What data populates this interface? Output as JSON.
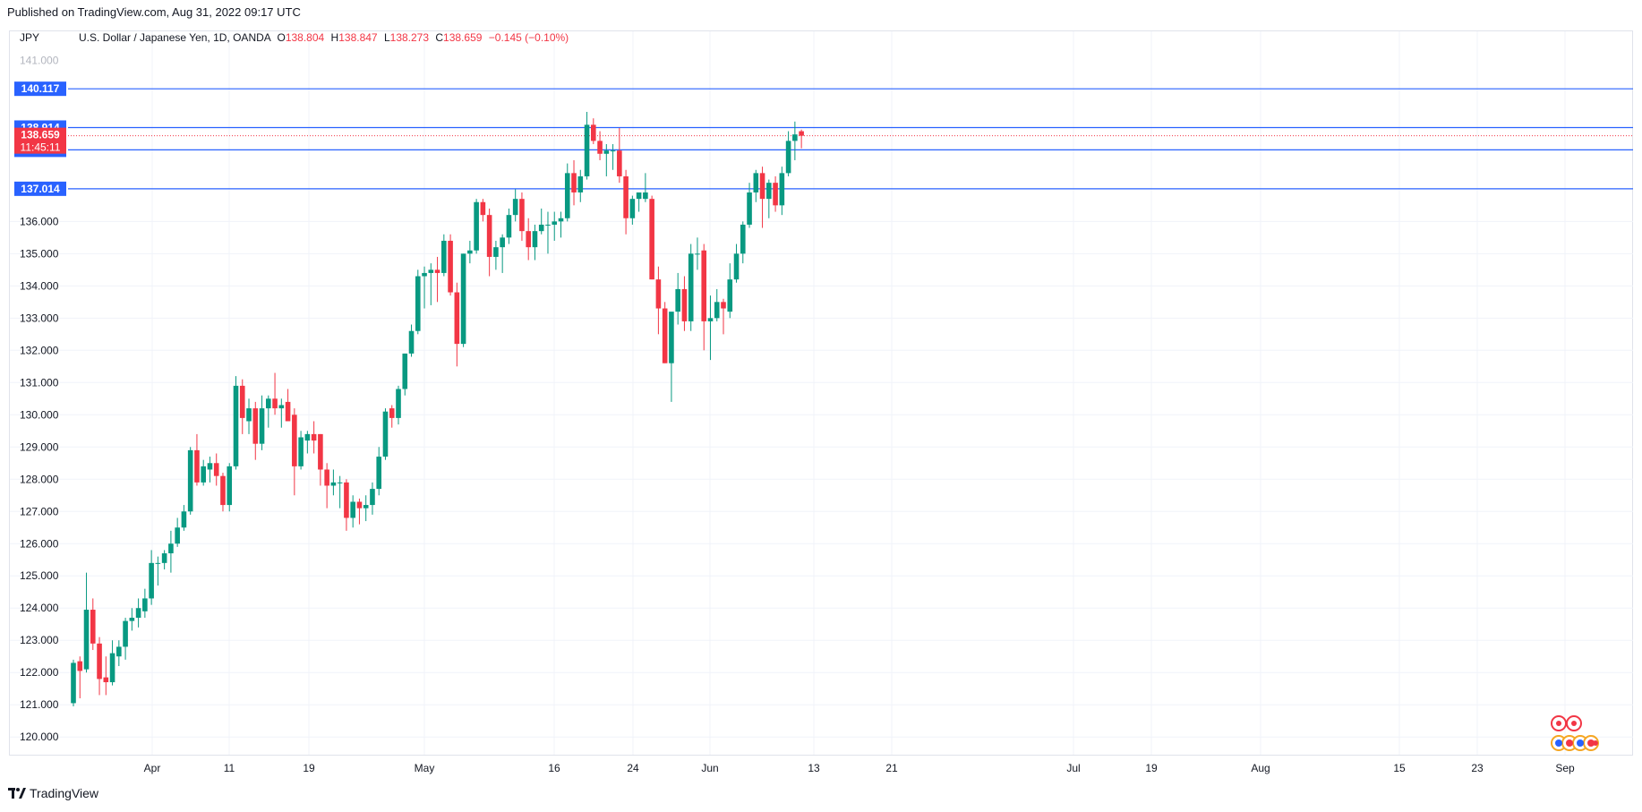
{
  "published": "Published on TradingView.com, Aug 31, 2022 09:17 UTC",
  "brand": "TradingView",
  "header": {
    "symbol": "JPY",
    "description": "U.S. Dollar / Japanese Yen, 1D, OANDA",
    "o_label": "O",
    "o_value": "138.804",
    "h_label": "H",
    "h_value": "138.847",
    "l_label": "L",
    "l_value": "138.273",
    "c_label": "C",
    "c_value": "138.659",
    "change": "−0.145 (−0.10%)"
  },
  "colors": {
    "up": "#089981",
    "down": "#f23645",
    "hline": "#2962ff",
    "grid": "#f0f3fa",
    "axis_text": "#131722"
  },
  "chart_data": {
    "type": "candlestick",
    "symbol": "USD/JPY",
    "timeframe": "1D",
    "ylim": [
      119.45,
      141.9
    ],
    "y_ticks": [
      "120.000",
      "121.000",
      "122.000",
      "123.000",
      "124.000",
      "125.000",
      "126.000",
      "127.000",
      "128.000",
      "129.000",
      "130.000",
      "131.000",
      "132.000",
      "133.000",
      "134.000",
      "135.000",
      "136.000"
    ],
    "top_clipped_tick": "141.000",
    "x_labels": [
      "Apr",
      "11",
      "19",
      "May",
      "16",
      "24",
      "Jun",
      "13",
      "21",
      "Jul",
      "19",
      "Aug",
      "15",
      "23",
      "Sep"
    ],
    "hlines": [
      {
        "value": 140.117,
        "label": "140.117"
      },
      {
        "value": 138.914,
        "label": "138.914"
      },
      {
        "value": 138.222,
        "label": "138.222"
      },
      {
        "value": 137.014,
        "label": "137.014"
      }
    ],
    "last_price": {
      "value": 138.659,
      "label": "138.659",
      "countdown": "11:45:11"
    },
    "candles": [
      {
        "o": 121.05,
        "h": 122.4,
        "l": 120.95,
        "c": 122.3
      },
      {
        "o": 122.35,
        "h": 122.5,
        "l": 121.2,
        "c": 122.05
      },
      {
        "o": 122.1,
        "h": 125.1,
        "l": 122.0,
        "c": 123.95
      },
      {
        "o": 123.95,
        "h": 124.3,
        "l": 122.7,
        "c": 122.9
      },
      {
        "o": 122.9,
        "h": 123.1,
        "l": 121.3,
        "c": 121.8
      },
      {
        "o": 121.85,
        "h": 122.5,
        "l": 121.3,
        "c": 121.7
      },
      {
        "o": 121.7,
        "h": 123.0,
        "l": 121.6,
        "c": 122.6
      },
      {
        "o": 122.5,
        "h": 123.0,
        "l": 122.2,
        "c": 122.8
      },
      {
        "o": 122.8,
        "h": 123.7,
        "l": 122.4,
        "c": 123.6
      },
      {
        "o": 123.6,
        "h": 124.0,
        "l": 123.3,
        "c": 123.7
      },
      {
        "o": 123.7,
        "h": 124.3,
        "l": 123.4,
        "c": 124.0
      },
      {
        "o": 123.9,
        "h": 124.6,
        "l": 123.7,
        "c": 124.3
      },
      {
        "o": 124.3,
        "h": 125.8,
        "l": 124.1,
        "c": 125.4
      },
      {
        "o": 125.4,
        "h": 125.6,
        "l": 124.7,
        "c": 125.4
      },
      {
        "o": 125.4,
        "h": 125.8,
        "l": 125.2,
        "c": 125.7
      },
      {
        "o": 125.7,
        "h": 126.4,
        "l": 125.1,
        "c": 126.0
      },
      {
        "o": 126.0,
        "h": 126.8,
        "l": 125.9,
        "c": 126.5
      },
      {
        "o": 126.5,
        "h": 127.2,
        "l": 126.4,
        "c": 127.0
      },
      {
        "o": 127.0,
        "h": 129.0,
        "l": 126.9,
        "c": 128.9
      },
      {
        "o": 128.9,
        "h": 129.4,
        "l": 127.8,
        "c": 127.9
      },
      {
        "o": 127.9,
        "h": 128.6,
        "l": 127.8,
        "c": 128.4
      },
      {
        "o": 128.3,
        "h": 128.7,
        "l": 127.9,
        "c": 128.5
      },
      {
        "o": 128.5,
        "h": 128.8,
        "l": 127.8,
        "c": 128.1
      },
      {
        "o": 128.1,
        "h": 128.2,
        "l": 127.0,
        "c": 127.2
      },
      {
        "o": 127.2,
        "h": 128.5,
        "l": 127.0,
        "c": 128.4
      },
      {
        "o": 128.4,
        "h": 131.2,
        "l": 128.3,
        "c": 130.9
      },
      {
        "o": 130.9,
        "h": 131.1,
        "l": 129.4,
        "c": 129.9
      },
      {
        "o": 129.8,
        "h": 130.5,
        "l": 129.4,
        "c": 130.2
      },
      {
        "o": 130.2,
        "h": 130.4,
        "l": 128.6,
        "c": 129.1
      },
      {
        "o": 129.1,
        "h": 130.6,
        "l": 128.9,
        "c": 130.2
      },
      {
        "o": 130.2,
        "h": 130.6,
        "l": 129.6,
        "c": 130.5
      },
      {
        "o": 130.5,
        "h": 131.3,
        "l": 130.0,
        "c": 130.2
      },
      {
        "o": 130.2,
        "h": 130.5,
        "l": 129.6,
        "c": 130.3
      },
      {
        "o": 130.4,
        "h": 130.8,
        "l": 129.8,
        "c": 129.8
      },
      {
        "o": 130.0,
        "h": 130.2,
        "l": 127.5,
        "c": 128.4
      },
      {
        "o": 128.4,
        "h": 129.5,
        "l": 128.3,
        "c": 129.3
      },
      {
        "o": 129.2,
        "h": 129.5,
        "l": 128.8,
        "c": 129.4
      },
      {
        "o": 129.4,
        "h": 129.8,
        "l": 128.8,
        "c": 129.2
      },
      {
        "o": 129.4,
        "h": 129.4,
        "l": 127.8,
        "c": 128.3
      },
      {
        "o": 128.3,
        "h": 128.5,
        "l": 127.1,
        "c": 127.8
      },
      {
        "o": 127.8,
        "h": 128.3,
        "l": 127.5,
        "c": 127.9
      },
      {
        "o": 127.9,
        "h": 128.1,
        "l": 127.1,
        "c": 127.9
      },
      {
        "o": 127.9,
        "h": 128.0,
        "l": 126.4,
        "c": 126.8
      },
      {
        "o": 126.8,
        "h": 127.5,
        "l": 126.5,
        "c": 127.3
      },
      {
        "o": 127.3,
        "h": 127.4,
        "l": 126.6,
        "c": 127.1
      },
      {
        "o": 127.1,
        "h": 127.5,
        "l": 126.7,
        "c": 127.2
      },
      {
        "o": 127.2,
        "h": 127.9,
        "l": 126.9,
        "c": 127.7
      },
      {
        "o": 127.7,
        "h": 129.0,
        "l": 127.5,
        "c": 128.7
      },
      {
        "o": 128.7,
        "h": 130.2,
        "l": 128.6,
        "c": 130.1
      },
      {
        "o": 130.2,
        "h": 130.3,
        "l": 129.6,
        "c": 129.9
      },
      {
        "o": 129.9,
        "h": 130.9,
        "l": 129.7,
        "c": 130.8
      },
      {
        "o": 130.8,
        "h": 131.9,
        "l": 130.6,
        "c": 131.9
      },
      {
        "o": 131.9,
        "h": 132.8,
        "l": 131.8,
        "c": 132.6
      },
      {
        "o": 132.6,
        "h": 134.5,
        "l": 132.5,
        "c": 134.3
      },
      {
        "o": 134.3,
        "h": 134.6,
        "l": 133.3,
        "c": 134.4
      },
      {
        "o": 134.4,
        "h": 134.7,
        "l": 133.4,
        "c": 134.5
      },
      {
        "o": 134.5,
        "h": 134.9,
        "l": 133.5,
        "c": 134.4
      },
      {
        "o": 134.4,
        "h": 135.6,
        "l": 134.3,
        "c": 135.4
      },
      {
        "o": 135.4,
        "h": 135.6,
        "l": 133.7,
        "c": 133.8
      },
      {
        "o": 133.8,
        "h": 134.1,
        "l": 131.5,
        "c": 132.2
      },
      {
        "o": 132.2,
        "h": 135.0,
        "l": 132.1,
        "c": 135.0
      },
      {
        "o": 135.0,
        "h": 135.4,
        "l": 134.7,
        "c": 135.1
      },
      {
        "o": 135.1,
        "h": 136.7,
        "l": 135.0,
        "c": 136.6
      },
      {
        "o": 136.6,
        "h": 136.7,
        "l": 136.0,
        "c": 136.2
      },
      {
        "o": 136.2,
        "h": 136.4,
        "l": 134.3,
        "c": 134.9
      },
      {
        "o": 134.9,
        "h": 135.4,
        "l": 134.5,
        "c": 135.2
      },
      {
        "o": 135.2,
        "h": 135.6,
        "l": 134.4,
        "c": 135.5
      },
      {
        "o": 135.5,
        "h": 136.4,
        "l": 135.3,
        "c": 136.2
      },
      {
        "o": 136.2,
        "h": 137.0,
        "l": 136.0,
        "c": 136.7
      },
      {
        "o": 136.7,
        "h": 136.9,
        "l": 135.4,
        "c": 135.7
      },
      {
        "o": 135.7,
        "h": 136.1,
        "l": 134.8,
        "c": 135.2
      },
      {
        "o": 135.2,
        "h": 135.9,
        "l": 134.8,
        "c": 135.7
      },
      {
        "o": 135.7,
        "h": 136.4,
        "l": 135.6,
        "c": 135.9
      },
      {
        "o": 135.9,
        "h": 136.3,
        "l": 135.0,
        "c": 135.9
      },
      {
        "o": 135.9,
        "h": 136.3,
        "l": 135.4,
        "c": 136.0
      },
      {
        "o": 136.0,
        "h": 136.3,
        "l": 135.5,
        "c": 136.1
      },
      {
        "o": 136.1,
        "h": 137.8,
        "l": 136.0,
        "c": 137.5
      },
      {
        "o": 137.5,
        "h": 137.9,
        "l": 136.5,
        "c": 136.9
      },
      {
        "o": 136.9,
        "h": 137.6,
        "l": 136.6,
        "c": 137.4
      },
      {
        "o": 137.4,
        "h": 139.4,
        "l": 137.3,
        "c": 139.0
      },
      {
        "o": 139.0,
        "h": 139.2,
        "l": 138.4,
        "c": 138.5
      },
      {
        "o": 138.5,
        "h": 138.8,
        "l": 137.9,
        "c": 138.1
      },
      {
        "o": 138.1,
        "h": 138.4,
        "l": 137.4,
        "c": 138.2
      },
      {
        "o": 138.2,
        "h": 138.4,
        "l": 137.6,
        "c": 138.2
      },
      {
        "o": 138.2,
        "h": 138.9,
        "l": 137.2,
        "c": 137.4
      },
      {
        "o": 137.4,
        "h": 137.6,
        "l": 135.6,
        "c": 136.1
      },
      {
        "o": 136.1,
        "h": 136.8,
        "l": 135.9,
        "c": 136.7
      },
      {
        "o": 136.7,
        "h": 136.8,
        "l": 136.3,
        "c": 136.9
      },
      {
        "o": 136.7,
        "h": 137.5,
        "l": 136.6,
        "c": 136.9
      },
      {
        "o": 136.7,
        "h": 136.8,
        "l": 134.2,
        "c": 134.2
      },
      {
        "o": 134.2,
        "h": 134.6,
        "l": 132.5,
        "c": 133.3
      },
      {
        "o": 133.3,
        "h": 133.5,
        "l": 131.6,
        "c": 131.6
      },
      {
        "o": 131.6,
        "h": 133.0,
        "l": 130.4,
        "c": 133.2
      },
      {
        "o": 133.2,
        "h": 134.4,
        "l": 132.8,
        "c": 133.9
      },
      {
        "o": 133.9,
        "h": 134.3,
        "l": 132.6,
        "c": 132.9
      },
      {
        "o": 132.9,
        "h": 135.3,
        "l": 132.6,
        "c": 135.0
      },
      {
        "o": 135.0,
        "h": 135.5,
        "l": 134.5,
        "c": 135.0
      },
      {
        "o": 135.1,
        "h": 135.3,
        "l": 132.0,
        "c": 132.9
      },
      {
        "o": 132.9,
        "h": 133.7,
        "l": 131.7,
        "c": 133.0
      },
      {
        "o": 133.0,
        "h": 133.9,
        "l": 132.9,
        "c": 133.5
      },
      {
        "o": 133.5,
        "h": 133.6,
        "l": 132.5,
        "c": 133.3
      },
      {
        "o": 133.2,
        "h": 134.7,
        "l": 133.0,
        "c": 134.2
      },
      {
        "o": 134.2,
        "h": 135.3,
        "l": 134.1,
        "c": 135.0
      },
      {
        "o": 135.0,
        "h": 136.0,
        "l": 134.7,
        "c": 135.9
      },
      {
        "o": 135.9,
        "h": 137.2,
        "l": 135.8,
        "c": 136.9
      },
      {
        "o": 136.9,
        "h": 137.6,
        "l": 136.6,
        "c": 137.5
      },
      {
        "o": 137.5,
        "h": 137.7,
        "l": 135.8,
        "c": 136.7
      },
      {
        "o": 136.7,
        "h": 137.3,
        "l": 136.1,
        "c": 137.2
      },
      {
        "o": 137.2,
        "h": 137.4,
        "l": 136.3,
        "c": 136.5
      },
      {
        "o": 136.5,
        "h": 137.7,
        "l": 136.2,
        "c": 137.5
      },
      {
        "o": 137.5,
        "h": 138.8,
        "l": 137.4,
        "c": 138.5
      },
      {
        "o": 138.5,
        "h": 139.1,
        "l": 137.9,
        "c": 138.7
      },
      {
        "o": 138.8,
        "h": 138.85,
        "l": 138.27,
        "c": 138.66
      }
    ]
  }
}
